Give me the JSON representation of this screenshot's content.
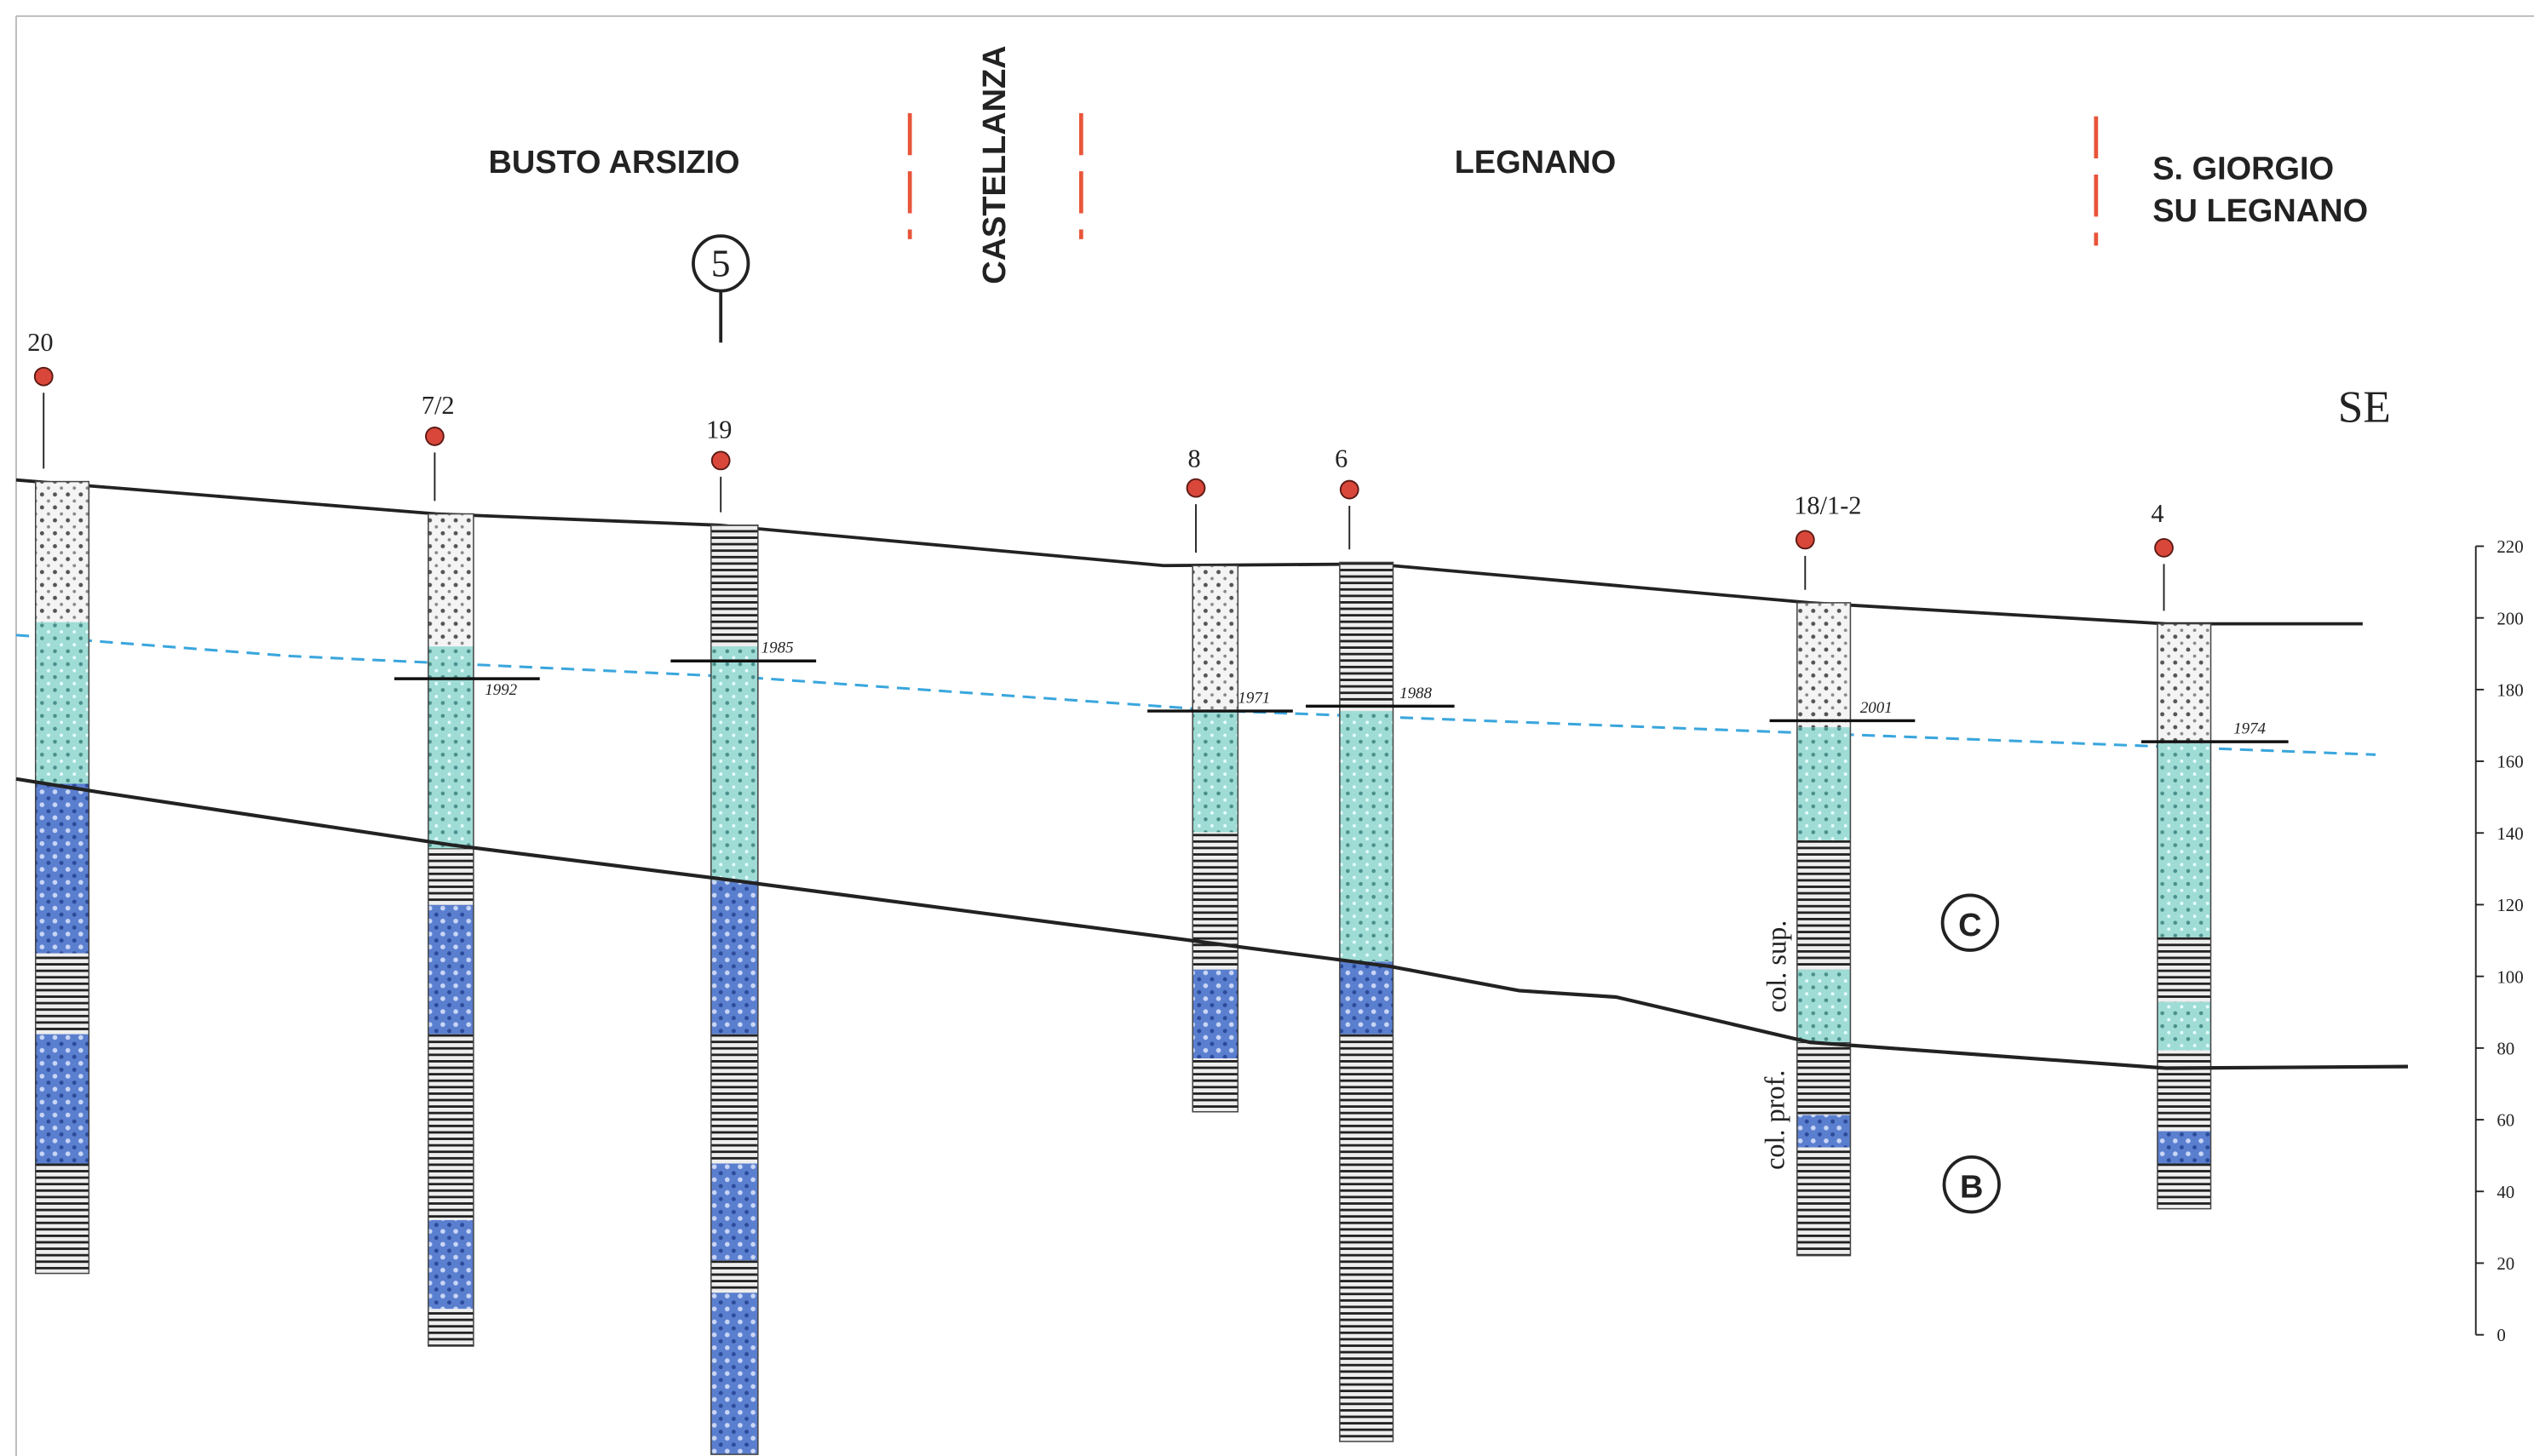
{
  "header": {
    "places": [
      "BUSTO ARSIZIO",
      "CASTELLANZA",
      "LEGNANO",
      "S. GIORGIO",
      "SU LEGNANO"
    ]
  },
  "section_number": "5",
  "orientation": "SE",
  "wells": [
    {
      "label": "20"
    },
    {
      "label": "7/2",
      "year": "1992"
    },
    {
      "label": "19",
      "year": "1985"
    },
    {
      "label": "8",
      "year": "1971"
    },
    {
      "label": "6",
      "year": "1988"
    },
    {
      "label": "18/1-2",
      "year": "2001"
    },
    {
      "label": "4",
      "year": "1974"
    }
  ],
  "units": [
    "C",
    "B"
  ],
  "column_labels": [
    "col. sup.",
    "col. prof."
  ],
  "scale": {
    "lim": [
      0,
      220
    ],
    "ticks": [
      0,
      20,
      40,
      60,
      80,
      100,
      120,
      140,
      160,
      180,
      200,
      220
    ]
  }
}
